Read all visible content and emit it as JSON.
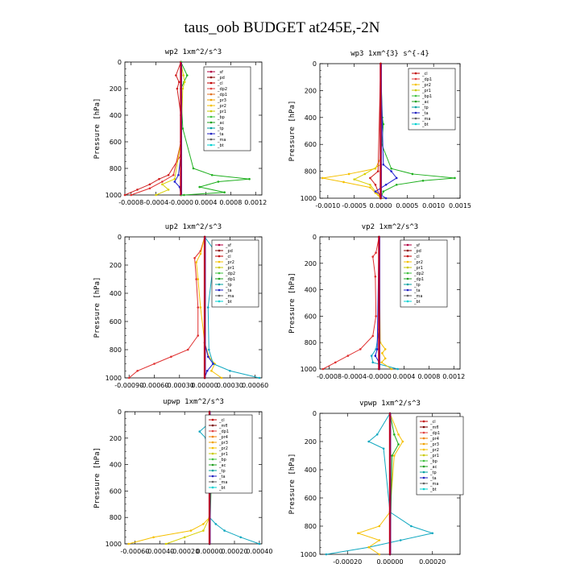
{
  "figure": {
    "title": "taus_oob  BUDGET at245E,-2N"
  },
  "chart_data": [
    {
      "type": "line",
      "title": "wp2   1xm^2/s^3",
      "ylabel": "Pressure [hPa]",
      "xlim": [
        -0.0009,
        0.0013
      ],
      "ylim": [
        0,
        1000
      ],
      "yticks": [
        "0",
        "200",
        "400",
        "600",
        "800",
        "1000"
      ],
      "xticks": [
        {
          "v": -0.0008,
          "label": "-0.0008"
        },
        {
          "v": -0.0004,
          "label": "-0.0004"
        },
        {
          "v": 0,
          "label": "-0.0000"
        },
        {
          "v": 0.0004,
          "label": "0.0004"
        },
        {
          "v": 0.0008,
          "label": "0.0008"
        },
        {
          "v": 0.0012,
          "label": "0.0012"
        }
      ],
      "legend": [
        "_sf",
        "_pd",
        "_cl",
        "_dp2",
        "_dp1",
        "_pr3",
        "_pr2",
        "_pr1",
        "_bp",
        "_ac",
        "_tp",
        "_ta",
        "_ma",
        "_bt"
      ],
      "legend_colors": [
        "#b00040",
        "#8b0000",
        "#c00000",
        "#e04040",
        "#e07020",
        "#f0a000",
        "#f5c000",
        "#c8c800",
        "#40c040",
        "#20a020",
        "#00a0a0",
        "#2020c0",
        "#606060",
        "#00d0d0"
      ],
      "series": [
        {
          "name": "_ac",
          "p": [
            0,
            100,
            150,
            200,
            500,
            800,
            850,
            880,
            900,
            940,
            980,
            1000
          ],
          "x": [
            0,
            0.0001,
            5e-05,
            0,
            3e-05,
            0.0002,
            0.0005,
            0.0011,
            0.0006,
            0.0003,
            0.0007,
            5e-05
          ]
        },
        {
          "name": "_dp1",
          "p": [
            0,
            100,
            150,
            200,
            400,
            700,
            850,
            880,
            920,
            960,
            1000
          ],
          "x": [
            0,
            -8e-05,
            -3e-05,
            -6e-05,
            0,
            0,
            -0.0002,
            -0.00035,
            -0.0005,
            -0.0007,
            -0.0009
          ]
        },
        {
          "name": "_dp2",
          "p": [
            0,
            600,
            850,
            900,
            950,
            1000
          ],
          "x": [
            0,
            0,
            -0.00012,
            -0.0003,
            -0.0005,
            -0.0008
          ]
        },
        {
          "name": "_pr1",
          "p": [
            0,
            100,
            150,
            200,
            600,
            880,
            920,
            960,
            1000
          ],
          "x": [
            0,
            4e-05,
            6e-05,
            3e-05,
            0,
            -0.0001,
            -0.0003,
            -0.0002,
            -0.0004
          ]
        },
        {
          "name": "_ta",
          "p": [
            0,
            700,
            850,
            900,
            940,
            1000
          ],
          "x": [
            0,
            0,
            -4e-05,
            -0.0001,
            -2e-05,
            0
          ]
        },
        {
          "name": "_cl",
          "p": [
            0,
            1000
          ],
          "x": [
            0,
            0
          ]
        },
        {
          "name": "_bp",
          "p": [
            0,
            1000
          ],
          "x": [
            1e-05,
            1e-05
          ]
        }
      ]
    },
    {
      "type": "line",
      "title": "wp3   1xm^{3} s^{-4}",
      "ylabel": "Pressure [hPa]",
      "xlim": [
        -0.00115,
        0.0015
      ],
      "ylim": [
        0,
        1000
      ],
      "yticks": [
        "0",
        "200",
        "400",
        "600",
        "800",
        "1000"
      ],
      "xticks": [
        {
          "v": -0.001,
          "label": "-0.0010"
        },
        {
          "v": -0.0005,
          "label": "-0.0005"
        },
        {
          "v": 0,
          "label": "0.0000"
        },
        {
          "v": 0.0005,
          "label": "0.0005"
        },
        {
          "v": 0.001,
          "label": "0.0010"
        },
        {
          "v": 0.0015,
          "label": "0.0015"
        }
      ],
      "legend": [
        "_cl",
        "_dp1",
        "_pr2",
        "_pr1",
        "_bp1",
        "_ac",
        "_tp",
        "_ta",
        "_ma",
        "_bt"
      ],
      "legend_colors": [
        "#c00000",
        "#e04040",
        "#f5c000",
        "#c8c800",
        "#40c040",
        "#20a020",
        "#00a0a0",
        "#2020c0",
        "#606060",
        "#00d0d0"
      ],
      "series": [
        {
          "name": "_ac",
          "p": [
            0,
            400,
            450,
            600,
            780,
            820,
            850,
            870,
            900,
            950,
            1000
          ],
          "x": [
            0,
            3e-05,
            5e-05,
            2e-05,
            0.0002,
            0.0006,
            0.0014,
            0.0008,
            0.0003,
            5e-05,
            0
          ]
        },
        {
          "name": "_pr2",
          "p": [
            0,
            700,
            780,
            820,
            850,
            880,
            920,
            960,
            1000
          ],
          "x": [
            0,
            0,
            -0.0001,
            -0.0006,
            -0.0011,
            -0.0007,
            -0.0002,
            -0.0001,
            0
          ]
        },
        {
          "name": "_pr1",
          "p": [
            0,
            750,
            820,
            860,
            900,
            1000
          ],
          "x": [
            0,
            0,
            -0.0003,
            -0.0005,
            -0.0002,
            0
          ]
        },
        {
          "name": "_ta",
          "p": [
            0,
            750,
            800,
            850,
            900,
            950,
            1000
          ],
          "x": [
            0,
            5e-05,
            0.0002,
            0.0003,
            0.0001,
            -0.0001,
            0.0001
          ]
        },
        {
          "name": "_dp1",
          "p": [
            0,
            800,
            850,
            900,
            1000
          ],
          "x": [
            0,
            -5e-05,
            -0.0002,
            -0.0001,
            0
          ]
        },
        {
          "name": "_cl",
          "p": [
            0,
            1000
          ],
          "x": [
            0,
            0
          ]
        }
      ]
    },
    {
      "type": "line",
      "title": "up2   1xm^2/s^3",
      "ylabel": "Pressure [hPa]",
      "xlim": [
        -0.00095,
        0.00068
      ],
      "ylim": [
        0,
        1000
      ],
      "yticks": [
        "0",
        "200",
        "400",
        "600",
        "800",
        "1000"
      ],
      "xticks": [
        {
          "v": -0.0009,
          "label": "-0.00090"
        },
        {
          "v": -0.0006,
          "label": "-0.00060"
        },
        {
          "v": -0.0003,
          "label": "-0.00030"
        },
        {
          "v": 0,
          "label": "0.00000"
        },
        {
          "v": 0.0003,
          "label": "0.00030"
        },
        {
          "v": 0.0006,
          "label": "0.00060"
        }
      ],
      "legend": [
        "_sf",
        "_pd",
        "_cl",
        "_pr2",
        "_pr1",
        "_dp2",
        "_dp1",
        "_tp",
        "_ta",
        "_ma",
        "_bt"
      ],
      "legend_colors": [
        "#b00040",
        "#8b0000",
        "#c00000",
        "#f5c000",
        "#c8c800",
        "#40c040",
        "#20a020",
        "#00a0a0",
        "#2020c0",
        "#606060",
        "#00d0d0"
      ],
      "series": [
        {
          "name": "_dp2",
          "p": [
            0,
            100,
            150,
            300,
            500,
            700,
            800,
            850,
            900,
            950,
            1000
          ],
          "x": [
            0,
            -5e-05,
            -0.00012,
            -0.0001,
            -8e-05,
            -8e-05,
            -0.0002,
            -0.0004,
            -0.0006,
            -0.0008,
            -0.0009
          ]
        },
        {
          "name": "_pr2",
          "p": [
            0,
            120,
            180,
            300,
            500,
            750,
            850,
            900,
            950,
            1000
          ],
          "x": [
            0,
            -5e-05,
            -0.0001,
            -8e-05,
            -5e-05,
            0,
            5e-05,
            0.00012,
            8e-05,
            0.0002
          ]
        },
        {
          "name": "_tp",
          "p": [
            0,
            100,
            150,
            200,
            500,
            800,
            900,
            950,
            1000
          ],
          "x": [
            0,
            0.00012,
            0.0002,
            0.0001,
            4e-05,
            5e-05,
            0.0001,
            0.0003,
            0.00065
          ]
        },
        {
          "name": "_ta",
          "p": [
            0,
            750,
            850,
            900,
            950,
            1000
          ],
          "x": [
            0,
            0,
            4e-05,
            0.0001,
            3e-05,
            0
          ]
        },
        {
          "name": "_pd",
          "p": [
            0,
            1000
          ],
          "x": [
            0,
            0
          ]
        }
      ]
    },
    {
      "type": "line",
      "title": "vp2   1xm^2/s^3",
      "ylabel": "Pressure [hPa]",
      "xlim": [
        -0.00095,
        0.0013
      ],
      "ylim": [
        0,
        1000
      ],
      "yticks": [
        "0",
        "200",
        "400",
        "600",
        "800",
        "1000"
      ],
      "xticks": [
        {
          "v": -0.0008,
          "label": "-0.0008"
        },
        {
          "v": -0.0004,
          "label": "-0.0004"
        },
        {
          "v": 0,
          "label": "-0.0000"
        },
        {
          "v": 0.0004,
          "label": "0.0004"
        },
        {
          "v": 0.0008,
          "label": "0.0008"
        },
        {
          "v": 0.0012,
          "label": "0.0012"
        }
      ],
      "legend": [
        "_sf",
        "_pd",
        "_cl",
        "_pr2",
        "_pr1",
        "_dp2",
        "_dp1",
        "_tp",
        "_ta",
        "_ma",
        "_bt"
      ],
      "legend_colors": [
        "#b00040",
        "#8b0000",
        "#c00000",
        "#f5c000",
        "#c8c800",
        "#40c040",
        "#20a020",
        "#00a0a0",
        "#2020c0",
        "#606060",
        "#00d0d0"
      ],
      "series": [
        {
          "name": "_dp2",
          "p": [
            0,
            120,
            150,
            300,
            600,
            750,
            850,
            900,
            950,
            1000
          ],
          "x": [
            0,
            -5e-05,
            -0.0001,
            -6e-05,
            -5e-05,
            -0.0001,
            -0.0003,
            -0.0005,
            -0.0007,
            -0.0009
          ]
        },
        {
          "name": "_tp",
          "p": [
            0,
            700,
            850,
            900,
            950,
            1000
          ],
          "x": [
            0,
            0,
            -5e-05,
            -0.00012,
            -0.0001,
            0.0003
          ]
        },
        {
          "name": "_pr2",
          "p": [
            0,
            800,
            850,
            880,
            920,
            950,
            1000
          ],
          "x": [
            0,
            2e-05,
            0.0001,
            5e-05,
            0.0001,
            4e-05,
            0.0002
          ]
        },
        {
          "name": "_ta",
          "p": [
            0,
            850,
            900,
            950,
            1000
          ],
          "x": [
            0,
            -3e-05,
            -6e-05,
            0,
            0
          ]
        },
        {
          "name": "_pd",
          "p": [
            0,
            1000
          ],
          "x": [
            0,
            0
          ]
        }
      ]
    },
    {
      "type": "line",
      "title": "upwp   1xm^2/s^3",
      "ylabel": "Pressure [hPa]",
      "xlim": [
        -0.00068,
        0.00042
      ],
      "ylim": [
        0,
        1000
      ],
      "yticks": [
        "0",
        "200",
        "400",
        "600",
        "800",
        "1000"
      ],
      "xticks": [
        {
          "v": -0.0006,
          "label": "-0.00060"
        },
        {
          "v": -0.0004,
          "label": "-0.00040"
        },
        {
          "v": -0.0002,
          "label": "-0.00020"
        },
        {
          "v": 0,
          "label": "0.00000"
        },
        {
          "v": 0.0002,
          "label": "0.00020"
        },
        {
          "v": 0.0004,
          "label": "0.00040"
        }
      ],
      "legend": [
        "_cl",
        "_mfl",
        "_dp1",
        "_pr4",
        "_pr3",
        "_pr2",
        "_pr1",
        "_bp",
        "_ac",
        "_tp",
        "_ta",
        "_ma",
        "_bt"
      ],
      "legend_colors": [
        "#c00000",
        "#7a0000",
        "#e04040",
        "#f08000",
        "#f0a000",
        "#f5c000",
        "#c8c800",
        "#40c040",
        "#20a020",
        "#00a0a0",
        "#2020c0",
        "#606060",
        "#00d0d0"
      ],
      "series": [
        {
          "name": "_tp",
          "p": [
            0,
            100,
            150,
            200,
            300,
            800,
            850,
            900,
            950,
            1000
          ],
          "x": [
            0,
            -2e-05,
            -8e-05,
            -3e-05,
            0,
            0,
            5e-05,
            0.00012,
            0.00025,
            0.0004
          ]
        },
        {
          "name": "_pr2",
          "p": [
            0,
            150,
            200,
            300,
            800,
            850,
            900,
            950,
            1000
          ],
          "x": [
            0,
            3e-05,
            5e-05,
            2e-05,
            0,
            -5e-05,
            -0.00015,
            -0.00045,
            -0.00065
          ]
        },
        {
          "name": "_pr1",
          "p": [
            0,
            800,
            900,
            950,
            1000
          ],
          "x": [
            0,
            0,
            -5e-05,
            -0.0002,
            -0.00035
          ]
        },
        {
          "name": "_ac",
          "p": [
            0,
            150,
            200,
            300,
            1000
          ],
          "x": [
            0,
            4e-05,
            6e-05,
            2e-05,
            0
          ]
        },
        {
          "name": "_mfl",
          "p": [
            0,
            1000
          ],
          "x": [
            0,
            0
          ]
        }
      ]
    },
    {
      "type": "line",
      "title": "vpwp   1xm^2/s^3",
      "ylabel": "Pressure [hPa]",
      "xlim": [
        -0.00033,
        0.00033
      ],
      "ylim": [
        0,
        1000
      ],
      "yticks": [
        "0",
        "200",
        "400",
        "600",
        "800",
        "1000"
      ],
      "xticks": [
        {
          "v": -0.0002,
          "label": "-0.00020"
        },
        {
          "v": 0,
          "label": "0.00000"
        },
        {
          "v": 0.0002,
          "label": "0.00020"
        }
      ],
      "legend": [
        "_cl",
        "_mfl",
        "_dp1",
        "_pr4",
        "_pr3",
        "_pr2",
        "_pr1",
        "_bp",
        "_ac",
        "_tp",
        "_ta",
        "_ma",
        "_bt"
      ],
      "legend_colors": [
        "#c00000",
        "#7a0000",
        "#e04040",
        "#f08000",
        "#f0a000",
        "#f5c000",
        "#c8c800",
        "#40c040",
        "#20a020",
        "#00a0a0",
        "#2020c0",
        "#606060",
        "#00d0d0"
      ],
      "series": [
        {
          "name": "_tp",
          "p": [
            0,
            150,
            200,
            250,
            700,
            800,
            850,
            900,
            950,
            1000
          ],
          "x": [
            0,
            -6e-05,
            -0.0001,
            -3e-05,
            0,
            0.0001,
            0.0002,
            5e-05,
            -0.0001,
            -0.0003
          ]
        },
        {
          "name": "_pr2",
          "p": [
            0,
            150,
            200,
            300,
            700,
            800,
            850,
            900,
            950,
            1000
          ],
          "x": [
            0,
            4e-05,
            6e-05,
            2e-05,
            0,
            -5e-05,
            -0.00015,
            -5e-05,
            -0.0001,
            -5e-05
          ]
        },
        {
          "name": "_ac",
          "p": [
            0,
            150,
            220,
            300,
            1000
          ],
          "x": [
            0,
            2e-05,
            4e-05,
            1e-05,
            0
          ]
        },
        {
          "name": "_mfl",
          "p": [
            0,
            1000
          ],
          "x": [
            0,
            0
          ]
        }
      ]
    }
  ]
}
